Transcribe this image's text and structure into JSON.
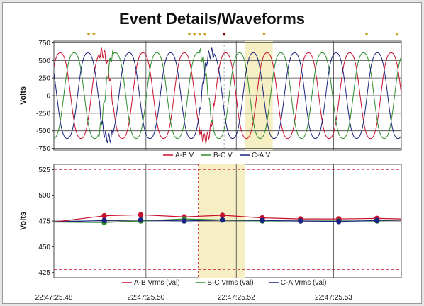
{
  "title": "Event Details/Waveforms",
  "colors": {
    "ab": "#c8102e",
    "bc": "#2e8b2e",
    "ca": "#1a237e",
    "highlight": "#f5efc3",
    "limit": "#c8102e",
    "marker": "#c9a227",
    "marker_active": "#8b0000"
  },
  "chart_data": [
    {
      "type": "line",
      "title": "Event Details/Waveforms",
      "ylabel": "Volts",
      "ylim": [
        -775,
        775
      ],
      "yticks": [
        750,
        500,
        250,
        0,
        -250,
        -500,
        -750
      ],
      "xlim": [
        0,
        100
      ],
      "grid": true,
      "legend_position": "bottom-center",
      "waveform": {
        "amplitude": 650,
        "cycles": 8.4,
        "phase_shift_deg": 120,
        "peak_distortion_spans": [
          [
            13,
            17
          ],
          [
            42,
            46
          ]
        ]
      },
      "series": [
        {
          "name": "A-B V",
          "color": "#c8102e",
          "phase_deg": 0
        },
        {
          "name": "B-C V",
          "color": "#2e8b2e",
          "phase_deg": -120
        },
        {
          "name": "C-A V",
          "color": "#1a237e",
          "phase_deg": 120
        }
      ],
      "event_markers_x": [
        10,
        11.5,
        39,
        40.5,
        42,
        43.5,
        60.5,
        90,
        101
      ],
      "active_marker_x": 49,
      "highlight_x": [
        55,
        63
      ]
    },
    {
      "type": "line",
      "ylabel": "Volts",
      "ylim": [
        420,
        530
      ],
      "yticks": [
        525,
        500,
        475,
        450,
        425
      ],
      "x_labels": [
        "22:47:25.48",
        "22:47:25.50",
        "22:47:25.52",
        "22:47:25.53"
      ],
      "x_label_positions": [
        0,
        26.5,
        52.5,
        80.5
      ],
      "xlim": [
        0,
        100
      ],
      "grid": true,
      "legend_position": "bottom-center",
      "limit_lines": [
        525,
        428
      ],
      "highlight_x": [
        41.5,
        55
      ],
      "series": [
        {
          "name": "A-B Vrms (val)",
          "color": "#c8102e",
          "x": [
            0,
            14.5,
            25,
            37.5,
            48.5,
            60,
            71,
            82,
            93,
            100
          ],
          "values": [
            474,
            480,
            481,
            479,
            480.5,
            478,
            477,
            477,
            477.5,
            477
          ]
        },
        {
          "name": "B-C Vrms (val)",
          "color": "#2e8b2e",
          "x": [
            0,
            14.5,
            25,
            37.5,
            48.5,
            60,
            71,
            82,
            93,
            100
          ],
          "values": [
            474,
            473.5,
            475,
            477,
            476,
            475,
            475,
            475,
            475,
            476
          ]
        },
        {
          "name": "C-A Vrms (val)",
          "color": "#1a237e",
          "x": [
            0,
            14.5,
            25,
            37.5,
            48.5,
            60,
            71,
            82,
            93,
            100
          ],
          "values": [
            474,
            475.5,
            476,
            475,
            476,
            475.5,
            475,
            474.5,
            475.5,
            476
          ]
        }
      ]
    }
  ]
}
